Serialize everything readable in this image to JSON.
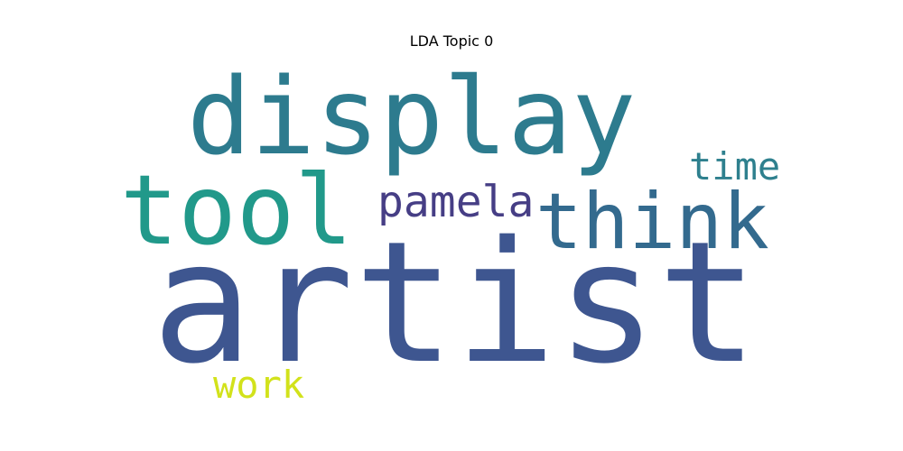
{
  "chart_data": {
    "type": "wordcloud",
    "title": "LDA Topic 0",
    "words": [
      {
        "text": "artist",
        "weight": 1.0,
        "color": "#3e5690"
      },
      {
        "text": "display",
        "weight": 0.62,
        "color": "#2d7b8e"
      },
      {
        "text": "tool",
        "weight": 0.56,
        "color": "#21998a"
      },
      {
        "text": "think",
        "weight": 0.45,
        "color": "#336a8e"
      },
      {
        "text": "pamela",
        "weight": 0.25,
        "color": "#463e85"
      },
      {
        "text": "time",
        "weight": 0.22,
        "color": "#2e808e"
      },
      {
        "text": "work",
        "weight": 0.22,
        "color": "#d2e21b"
      }
    ],
    "background": "#ffffff"
  }
}
